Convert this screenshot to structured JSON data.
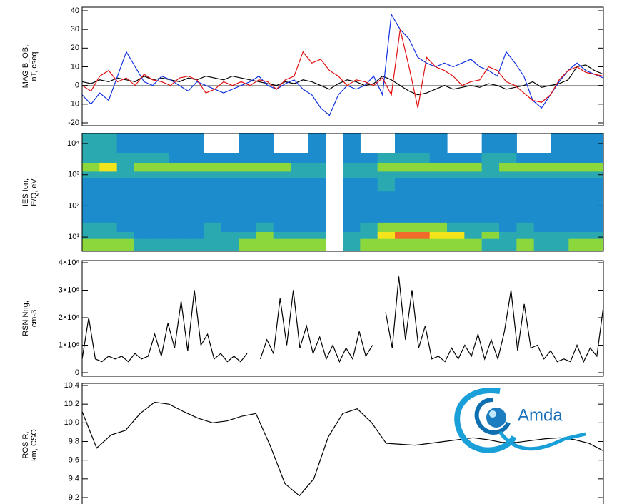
{
  "chart_data": [
    {
      "type": "line",
      "ylabel": [
        "MAG B_OB,",
        "nT, cseq"
      ],
      "ylim": [
        -20,
        40
      ],
      "yticks": [
        -20,
        -10,
        0,
        10,
        20,
        30,
        40
      ],
      "zero_line": true,
      "series": [
        {
          "color": "#000000",
          "values": [
            2,
            1,
            3,
            2,
            4,
            3,
            2,
            5,
            3,
            4,
            3,
            2,
            4,
            3,
            5,
            4,
            3,
            5,
            4,
            3,
            2,
            1,
            0,
            2,
            1,
            3,
            2,
            0,
            -2,
            1,
            3,
            2,
            0,
            1,
            5,
            3,
            0,
            -3,
            -5,
            -4,
            -2,
            0,
            -2,
            -1,
            0,
            -1,
            1,
            0,
            -2,
            -1,
            0,
            2,
            -1,
            0,
            1,
            3,
            10,
            11,
            8,
            6
          ]
        },
        {
          "color": "#1030e0",
          "values": [
            -5,
            -10,
            -4,
            -8,
            5,
            18,
            10,
            2,
            0,
            5,
            3,
            0,
            -3,
            2,
            0,
            -2,
            -4,
            -2,
            0,
            2,
            5,
            0,
            -2,
            1,
            3,
            -2,
            -5,
            -12,
            -16,
            -5,
            0,
            -2,
            0,
            5,
            -5,
            38,
            30,
            25,
            15,
            12,
            10,
            12,
            10,
            12,
            14,
            10,
            8,
            5,
            18,
            12,
            5,
            -8,
            -12,
            -5,
            2,
            8,
            12,
            8,
            6,
            4
          ]
        },
        {
          "color": "#e01010",
          "values": [
            0,
            -3,
            5,
            8,
            2,
            4,
            0,
            6,
            3,
            2,
            0,
            4,
            5,
            3,
            -4,
            -2,
            2,
            0,
            2,
            0,
            3,
            2,
            -2,
            3,
            5,
            18,
            12,
            14,
            8,
            5,
            0,
            3,
            2,
            0,
            4,
            -5,
            30,
            10,
            -12,
            15,
            10,
            8,
            5,
            0,
            2,
            3,
            10,
            8,
            2,
            0,
            -4,
            -8,
            -9,
            -5,
            3,
            8,
            10,
            7,
            6,
            5
          ]
        }
      ]
    },
    {
      "type": "heatmap",
      "ylabel": [
        "IES Ion,",
        "E/Q, eV"
      ],
      "ylog": true,
      "ylim": [
        3.5,
        21000
      ],
      "yticks": [
        {
          "value": 10,
          "label": "10¹"
        },
        {
          "value": 100,
          "label": "10²"
        },
        {
          "value": 1000,
          "label": "10³"
        },
        {
          "value": 10000,
          "label": "10⁴"
        }
      ],
      "ybins": [
        3.5,
        9,
        15,
        30,
        100,
        300,
        800,
        1300,
        2500,
        5000,
        21000
      ],
      "colors": [
        "#1c8ccc",
        "#2aaab0",
        "#8cd83c",
        "#f4e41c",
        "#f06a2a"
      ],
      "z": [
        [
          2,
          2,
          2,
          1,
          1,
          1,
          1,
          1,
          1,
          2,
          2,
          2,
          2,
          2,
          null,
          1,
          2,
          2,
          2,
          2,
          2,
          2,
          2,
          1,
          1,
          2,
          1,
          1,
          2,
          2
        ],
        [
          1,
          1,
          1,
          0,
          0,
          0,
          0,
          1,
          1,
          1,
          2,
          1,
          1,
          1,
          null,
          1,
          1,
          3,
          4,
          4,
          3,
          3,
          1,
          2,
          1,
          1,
          1,
          1,
          1,
          1
        ],
        [
          1,
          1,
          0,
          0,
          0,
          0,
          0,
          1,
          0,
          0,
          1,
          0,
          0,
          0,
          null,
          0,
          1,
          2,
          2,
          2,
          2,
          1,
          1,
          1,
          0,
          1,
          0,
          0,
          0,
          0
        ],
        [
          0,
          0,
          0,
          0,
          0,
          0,
          0,
          0,
          0,
          0,
          0,
          0,
          0,
          0,
          null,
          0,
          0,
          0,
          0,
          0,
          0,
          0,
          0,
          0,
          0,
          0,
          0,
          0,
          0,
          0
        ],
        [
          0,
          0,
          0,
          0,
          0,
          0,
          0,
          0,
          0,
          0,
          0,
          0,
          0,
          0,
          null,
          0,
          0,
          0,
          0,
          0,
          0,
          0,
          0,
          0,
          0,
          0,
          0,
          0,
          0,
          0
        ],
        [
          0,
          0,
          0,
          0,
          0,
          0,
          0,
          0,
          0,
          0,
          0,
          0,
          0,
          0,
          null,
          0,
          0,
          1,
          0,
          0,
          0,
          0,
          0,
          0,
          0,
          0,
          0,
          0,
          0,
          0
        ],
        [
          1,
          1,
          1,
          1,
          1,
          1,
          1,
          1,
          1,
          1,
          1,
          1,
          1,
          1,
          null,
          1,
          1,
          1,
          1,
          1,
          1,
          1,
          1,
          1,
          1,
          1,
          1,
          1,
          1,
          1
        ],
        [
          2,
          3,
          1,
          2,
          2,
          2,
          2,
          2,
          2,
          2,
          2,
          2,
          1,
          1,
          null,
          1,
          1,
          2,
          2,
          2,
          2,
          2,
          2,
          1,
          2,
          2,
          2,
          2,
          2,
          2
        ],
        [
          1,
          1,
          1,
          1,
          1,
          0,
          0,
          0,
          0,
          0,
          0,
          0,
          0,
          0,
          null,
          0,
          0,
          1,
          1,
          1,
          0,
          0,
          0,
          1,
          1,
          0,
          0,
          0,
          0,
          0
        ],
        [
          1,
          1,
          0,
          0,
          0,
          0,
          0,
          null,
          null,
          0,
          0,
          null,
          null,
          0,
          null,
          0,
          null,
          null,
          0,
          0,
          0,
          null,
          null,
          0,
          0,
          null,
          null,
          0,
          0,
          0
        ]
      ]
    },
    {
      "type": "line",
      "ylabel": [
        "RSN Nng,",
        "cm-3"
      ],
      "ylim": [
        0,
        4000000
      ],
      "yticks": [
        0,
        {
          "value": 1000000,
          "label": "1×10⁶"
        },
        {
          "value": 2000000,
          "label": "2×10⁶"
        },
        {
          "value": 3000000,
          "label": "3×10⁶"
        },
        {
          "value": 4000000,
          "label": "4×10⁶"
        }
      ],
      "series": [
        {
          "color": "#000000",
          "values": [
            500000,
            2000000,
            500000,
            400000,
            600000,
            500000,
            600000,
            400000,
            700000,
            500000,
            600000,
            1400000,
            600000,
            1800000,
            900000,
            2600000,
            800000,
            3000000,
            1000000,
            1400000,
            500000,
            700000,
            400000,
            600000,
            400000,
            700000,
            null,
            500000,
            1200000,
            700000,
            2700000,
            1000000,
            3000000,
            900000,
            1700000,
            700000,
            1300000,
            500000,
            1000000,
            400000,
            900000,
            500000,
            1500000,
            600000,
            1000000,
            null,
            2200000,
            900000,
            3500000,
            1200000,
            3000000,
            900000,
            1700000,
            500000,
            600000,
            400000,
            900000,
            500000,
            1000000,
            600000,
            1400000,
            500000,
            1200000,
            500000,
            1500000,
            3000000,
            800000,
            2500000,
            900000,
            1000000,
            500000,
            800000,
            400000,
            500000,
            400000,
            1000000,
            400000,
            900000,
            600000,
            2400000
          ]
        }
      ]
    },
    {
      "type": "line",
      "ylabel": [
        "ROS R,",
        "km, CSO"
      ],
      "ylim": [
        9.2,
        10.4
      ],
      "yticks": [
        9.2,
        9.4,
        9.6,
        9.8,
        {
          "value": 10,
          "label": "10.0"
        },
        10.2,
        10.4
      ],
      "series": [
        {
          "color": "#000000",
          "values": [
            10.12,
            9.73,
            9.87,
            9.92,
            10.1,
            10.22,
            10.2,
            10.12,
            10.05,
            10.0,
            10.02,
            10.07,
            10.1,
            9.75,
            9.35,
            9.22,
            9.4,
            9.85,
            10.1,
            10.15,
            10.0,
            9.78,
            9.77,
            9.76,
            9.78,
            9.8,
            9.82,
            9.84,
            9.82,
            9.79,
            9.79,
            9.81,
            9.83,
            9.84,
            9.82,
            9.78,
            9.7
          ]
        }
      ]
    }
  ],
  "logo": {
    "text": "Amda"
  }
}
